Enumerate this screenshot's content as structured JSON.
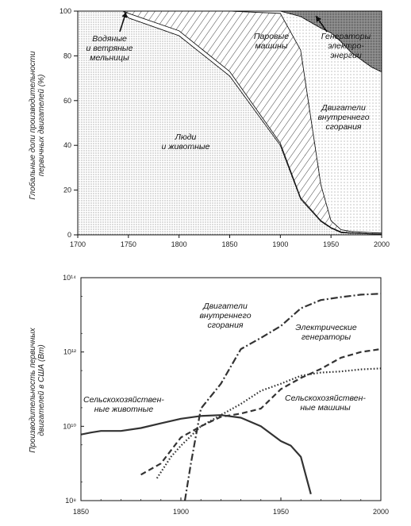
{
  "chart_data": [
    {
      "type": "area",
      "stacked": true,
      "ylabel": "Глобальные доли производительности первичных двигателей (%)",
      "xlim": [
        1700,
        2000
      ],
      "ylim": [
        0,
        100
      ],
      "xticks": [
        "1700",
        "1750",
        "1800",
        "1850",
        "1900",
        "1950",
        "2000"
      ],
      "yticks": [
        "0",
        "20",
        "40",
        "60",
        "80",
        "100"
      ],
      "grid": false,
      "x": [
        1700,
        1745,
        1750,
        1800,
        1850,
        1900,
        1920,
        1940,
        1950,
        1960,
        1970,
        1990,
        2000
      ],
      "series": [
        {
          "name": "Люди и животные",
          "values": [
            100,
            100,
            97,
            89,
            71,
            40,
            16,
            6,
            3,
            1,
            0.7,
            0.4,
            0.3
          ]
        },
        {
          "name": "Водяные и ветряные мельницы",
          "values": [
            0,
            0,
            2,
            2.2,
            2,
            1,
            0.6,
            0.4,
            0.3,
            0.3,
            0.2,
            0.1,
            0.1
          ]
        },
        {
          "name": "Паровые машины",
          "values": [
            0,
            0,
            1,
            8.8,
            27,
            58,
            66,
            16,
            3,
            1,
            0.6,
            0.5,
            0.4
          ]
        },
        {
          "name": "Двигатели внутреннего сгорания",
          "values": [
            0,
            0,
            0,
            0,
            0,
            1,
            15,
            70,
            84,
            84,
            80,
            74,
            72
          ]
        },
        {
          "name": "Генераторы электро-энергии",
          "values": [
            0,
            0,
            0,
            0,
            0,
            0,
            2.4,
            7.6,
            9.7,
            13.7,
            18.5,
            25,
            27.2
          ]
        }
      ],
      "labels": [
        "Водяные и ветряные мельницы",
        "Паровые машины",
        "Генераторы электро- энергии",
        "Люди и животные",
        "Двигатели внутреннего сгорания"
      ],
      "colors": {
        "fill_light": "#e0e0e0",
        "fill_dark": "#7a7a7a",
        "line": "#111111"
      }
    },
    {
      "type": "line",
      "yscale": "log",
      "ylabel": "Производительность первичных двигателей в США (Вт)",
      "xlim": [
        1850,
        2000
      ],
      "ylim": [
        100000000.0,
        100000000000000.0
      ],
      "xticks": [
        "1850",
        "1900",
        "1950",
        "2000"
      ],
      "yticks": [
        "10⁸",
        "10¹⁰",
        "10¹²",
        "10¹⁴"
      ],
      "grid": false,
      "series": [
        {
          "name": "Сельскохозяйствен- ные животные",
          "style": "solid",
          "x": [
            1850,
            1855,
            1860,
            1870,
            1880,
            1890,
            1900,
            1910,
            1920,
            1930,
            1940,
            1950,
            1955,
            1960,
            1965
          ],
          "values": [
            6000000000.0,
            6800000000.0,
            7500000000.0,
            7500000000.0,
            9000000000.0,
            12000000000.0,
            16000000000.0,
            19000000000.0,
            20000000000.0,
            17000000000.0,
            10000000000.0,
            4000000000.0,
            3000000000.0,
            1500000000.0,
            150000000.0
          ]
        },
        {
          "name": "Двигатели внутреннего сгорания",
          "style": "dash-dot",
          "x": [
            1902,
            1905,
            1910,
            1920,
            1930,
            1940,
            1950,
            1960,
            1970,
            1980,
            1990,
            2000
          ],
          "values": [
            100000000.0,
            1000000000.0,
            30000000000.0,
            140000000000.0,
            1200000000000.0,
            2400000000000.0,
            5000000000000.0,
            15000000000000.0,
            25000000000000.0,
            30000000000000.0,
            35000000000000.0,
            37000000000000.0
          ]
        },
        {
          "name": "Электрические генераторы",
          "style": "dashed",
          "x": [
            1880,
            1890,
            1900,
            1910,
            1920,
            1930,
            1940,
            1950,
            1960,
            1970,
            1980,
            1990,
            2000
          ],
          "values": [
            500000000.0,
            1000000000.0,
            5000000000.0,
            10000000000.0,
            18000000000.0,
            22000000000.0,
            30000000000.0,
            100000000000.0,
            200000000000.0,
            350000000000.0,
            700000000000.0,
            1000000000000.0,
            1200000000000.0
          ]
        },
        {
          "name": "Сельскохозяйствен- ные машины",
          "style": "dotted",
          "x": [
            1888,
            1895,
            1900,
            1910,
            1920,
            1930,
            1940,
            1950,
            1960,
            1970,
            1980,
            1990,
            2000
          ],
          "values": [
            400000000.0,
            1500000000.0,
            3000000000.0,
            10000000000.0,
            20000000000.0,
            40000000000.0,
            90000000000.0,
            140000000000.0,
            230000000000.0,
            280000000000.0,
            300000000000.0,
            340000000000.0,
            360000000000.0
          ]
        }
      ],
      "labels": [
        "Двигатели внутреннего сгорания",
        "Электрические генераторы",
        "Сельскохозяйствен- ные животные",
        "Сельскохозяйствен- ные машины"
      ]
    }
  ]
}
